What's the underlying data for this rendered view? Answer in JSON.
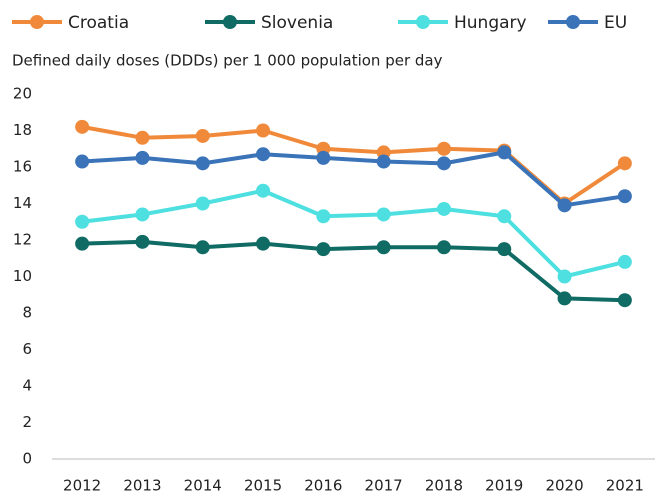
{
  "chart_data": {
    "type": "line",
    "ylabel": "Defined daily doses (DDDs) per 1 000 population per day",
    "categories": [
      "2012",
      "2013",
      "2014",
      "2015",
      "2016",
      "2017",
      "2018",
      "2019",
      "2020",
      "2021"
    ],
    "series": [
      {
        "name": "Croatia",
        "color": "#f08a3a",
        "values": [
          18.2,
          17.6,
          17.7,
          18.0,
          17.0,
          16.8,
          17.0,
          16.9,
          14.0,
          16.2
        ]
      },
      {
        "name": "Slovenia",
        "color": "#0f6b63",
        "values": [
          11.8,
          11.9,
          11.6,
          11.8,
          11.5,
          11.6,
          11.6,
          11.5,
          8.8,
          8.7
        ]
      },
      {
        "name": "Hungary",
        "color": "#4ee0e0",
        "values": [
          13.0,
          13.4,
          14.0,
          14.7,
          13.3,
          13.4,
          13.7,
          13.3,
          10.0,
          10.8
        ]
      },
      {
        "name": "EU",
        "color": "#3a73b8",
        "values": [
          16.3,
          16.5,
          16.2,
          16.7,
          16.5,
          16.3,
          16.2,
          16.8,
          13.9,
          14.4
        ]
      }
    ],
    "ylim": [
      0,
      20
    ],
    "yticks": [
      0,
      2,
      4,
      6,
      8,
      10,
      12,
      14,
      16,
      18,
      20
    ],
    "grid": false
  }
}
